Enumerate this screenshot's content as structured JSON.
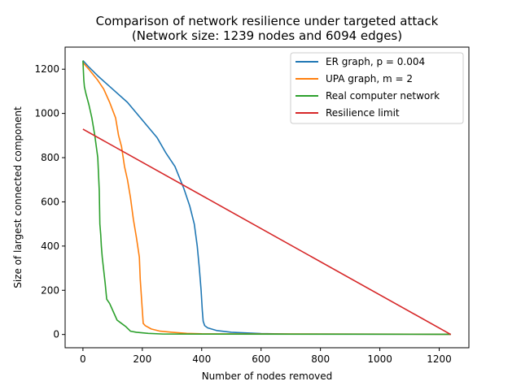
{
  "chart_data": {
    "type": "line",
    "title": "Comparison of network resilience under targeted attack",
    "subtitle": "(Network size: 1239 nodes and 6094 edges)",
    "xlabel": "Number of nodes removed",
    "ylabel": "Size of largest connected component",
    "xlim": [
      -60,
      1300
    ],
    "ylim": [
      -60,
      1300
    ],
    "xticks": [
      0,
      200,
      400,
      600,
      800,
      1000,
      1200
    ],
    "yticks": [
      0,
      200,
      400,
      600,
      800,
      1000,
      1200
    ],
    "grid": false,
    "legend_position": "top-right",
    "series": [
      {
        "name": "ER graph, p = 0.004",
        "color": "#1f77b4",
        "x": [
          0,
          20,
          50,
          100,
          150,
          200,
          250,
          280,
          310,
          340,
          360,
          375,
          385,
          392,
          398,
          402,
          405,
          410,
          420,
          450,
          500,
          600,
          700,
          1239
        ],
        "y": [
          1239,
          1210,
          1170,
          1110,
          1050,
          970,
          890,
          820,
          760,
          660,
          580,
          500,
          400,
          300,
          200,
          110,
          60,
          40,
          30,
          18,
          10,
          4,
          2,
          1
        ]
      },
      {
        "name": "UPA graph, m = 2",
        "color": "#ff7f0e",
        "x": [
          0,
          20,
          50,
          70,
          90,
          110,
          120,
          130,
          140,
          150,
          160,
          170,
          180,
          190,
          193,
          198,
          203,
          210,
          230,
          260,
          300,
          350,
          400,
          1239
        ],
        "y": [
          1230,
          1200,
          1150,
          1110,
          1050,
          980,
          900,
          850,
          760,
          700,
          620,
          520,
          440,
          350,
          250,
          150,
          50,
          40,
          25,
          15,
          10,
          5,
          3,
          1
        ]
      },
      {
        "name": "Real computer network",
        "color": "#2ca02c",
        "x": [
          0,
          3,
          5,
          10,
          20,
          30,
          40,
          50,
          55,
          57,
          60,
          62,
          65,
          70,
          75,
          80,
          90,
          100,
          115,
          130,
          145,
          160,
          180,
          220,
          270,
          1239
        ],
        "y": [
          1239,
          1150,
          1120,
          1090,
          1040,
          980,
          900,
          800,
          650,
          500,
          450,
          400,
          350,
          290,
          230,
          160,
          140,
          110,
          65,
          50,
          35,
          15,
          10,
          5,
          2,
          1
        ]
      },
      {
        "name": "Resilience limit",
        "color": "#d62728",
        "x": [
          0,
          1239
        ],
        "y": [
          929,
          0
        ]
      }
    ]
  }
}
